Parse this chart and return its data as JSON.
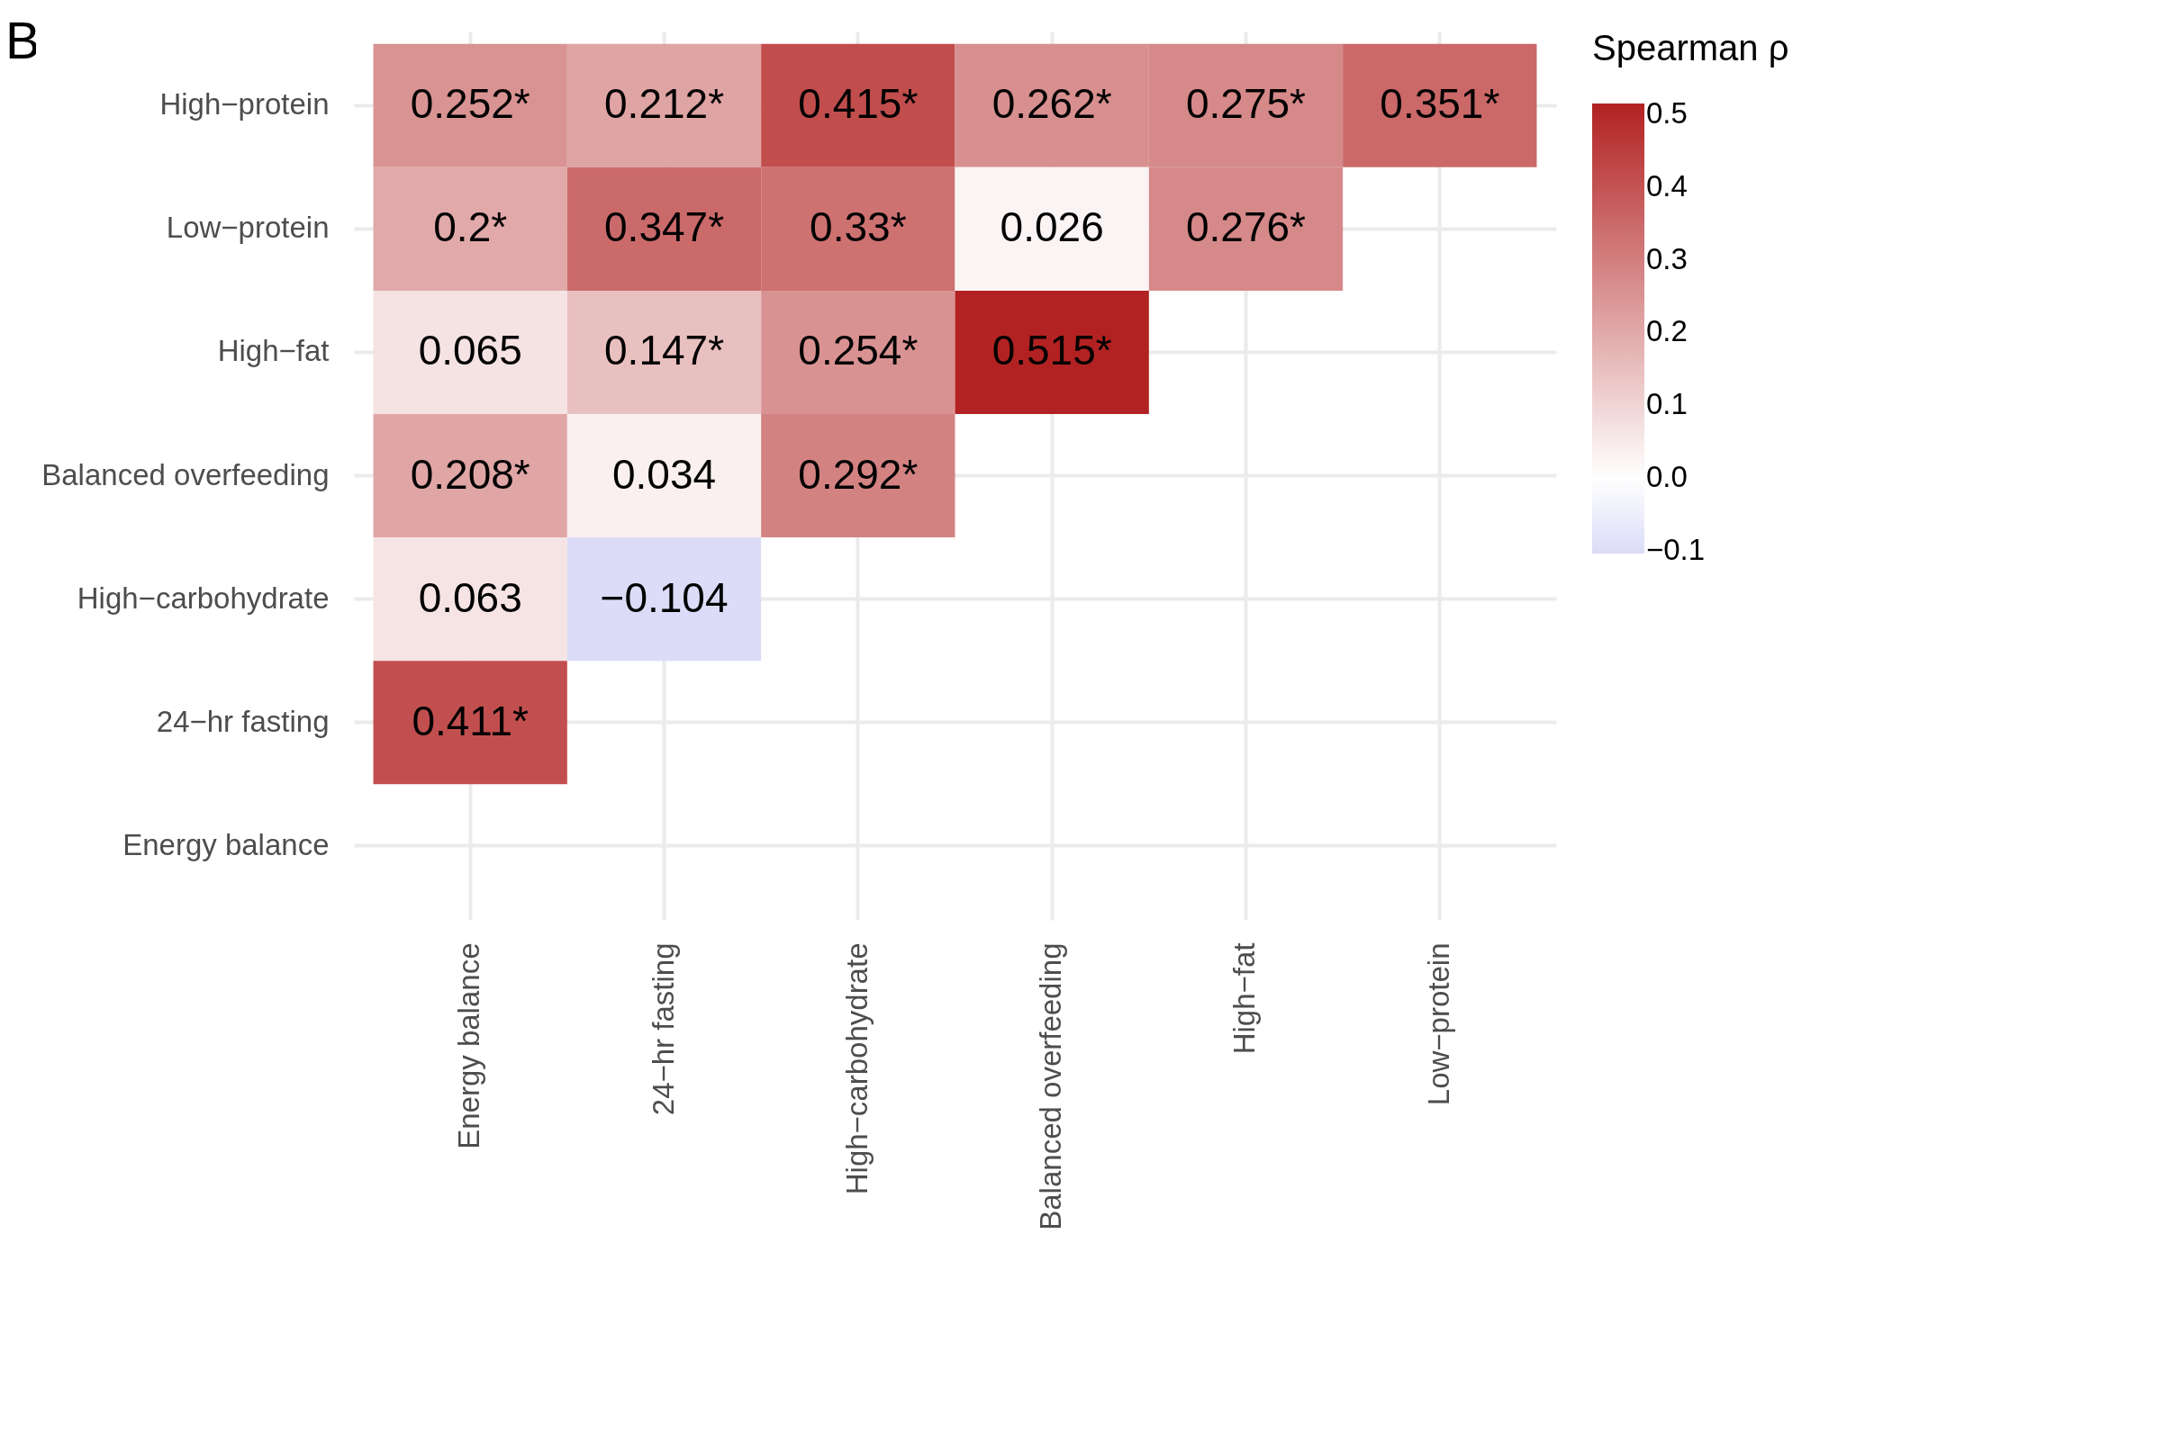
{
  "chart_data": {
    "type": "heatmap",
    "annotations": [
      "B"
    ],
    "legend_title": "Spearman ρ",
    "categories": [
      "Energy balance",
      "24−hr fasting",
      "High−carbohydrate",
      "Balanced overfeeding",
      "High−fat",
      "Low−protein"
    ],
    "y_categories": [
      "High−protein",
      "Low−protein",
      "High−fat",
      "Balanced overfeeding",
      "High−carbohydrate",
      "24−hr fasting",
      "Energy balance"
    ],
    "cells": [
      [
        0.252,
        0.212,
        0.415,
        0.262,
        0.275,
        0.351
      ],
      [
        0.2,
        0.347,
        0.33,
        0.026,
        0.276,
        null
      ],
      [
        0.065,
        0.147,
        0.254,
        0.515,
        null,
        null
      ],
      [
        0.208,
        0.034,
        0.292,
        null,
        null,
        null
      ],
      [
        0.063,
        -0.104,
        null,
        null,
        null,
        null
      ],
      [
        0.411,
        null,
        null,
        null,
        null,
        null
      ],
      [
        null,
        null,
        null,
        null,
        null,
        null
      ]
    ],
    "cell_labels": [
      [
        "0.252*",
        "0.212*",
        "0.415*",
        "0.262*",
        "0.275*",
        "0.351*"
      ],
      [
        "0.2*",
        "0.347*",
        "0.33*",
        "0.026",
        "0.276*",
        null
      ],
      [
        "0.065",
        "0.147*",
        "0.254*",
        "0.515*",
        null,
        null
      ],
      [
        "0.208*",
        "0.034",
        "0.292*",
        null,
        null,
        null
      ],
      [
        "0.063",
        "−0.104",
        null,
        null,
        null,
        null
      ],
      [
        "0.411*",
        null,
        null,
        null,
        null,
        null
      ],
      [
        null,
        null,
        null,
        null,
        null,
        null
      ]
    ],
    "clim": [
      -0.104,
      0.515
    ],
    "cticks": [
      -0.1,
      {
        "value": 0,
        "label": "0.0"
      },
      0.1,
      0.2,
      0.3,
      0.4,
      0.5
    ],
    "grid": true
  }
}
